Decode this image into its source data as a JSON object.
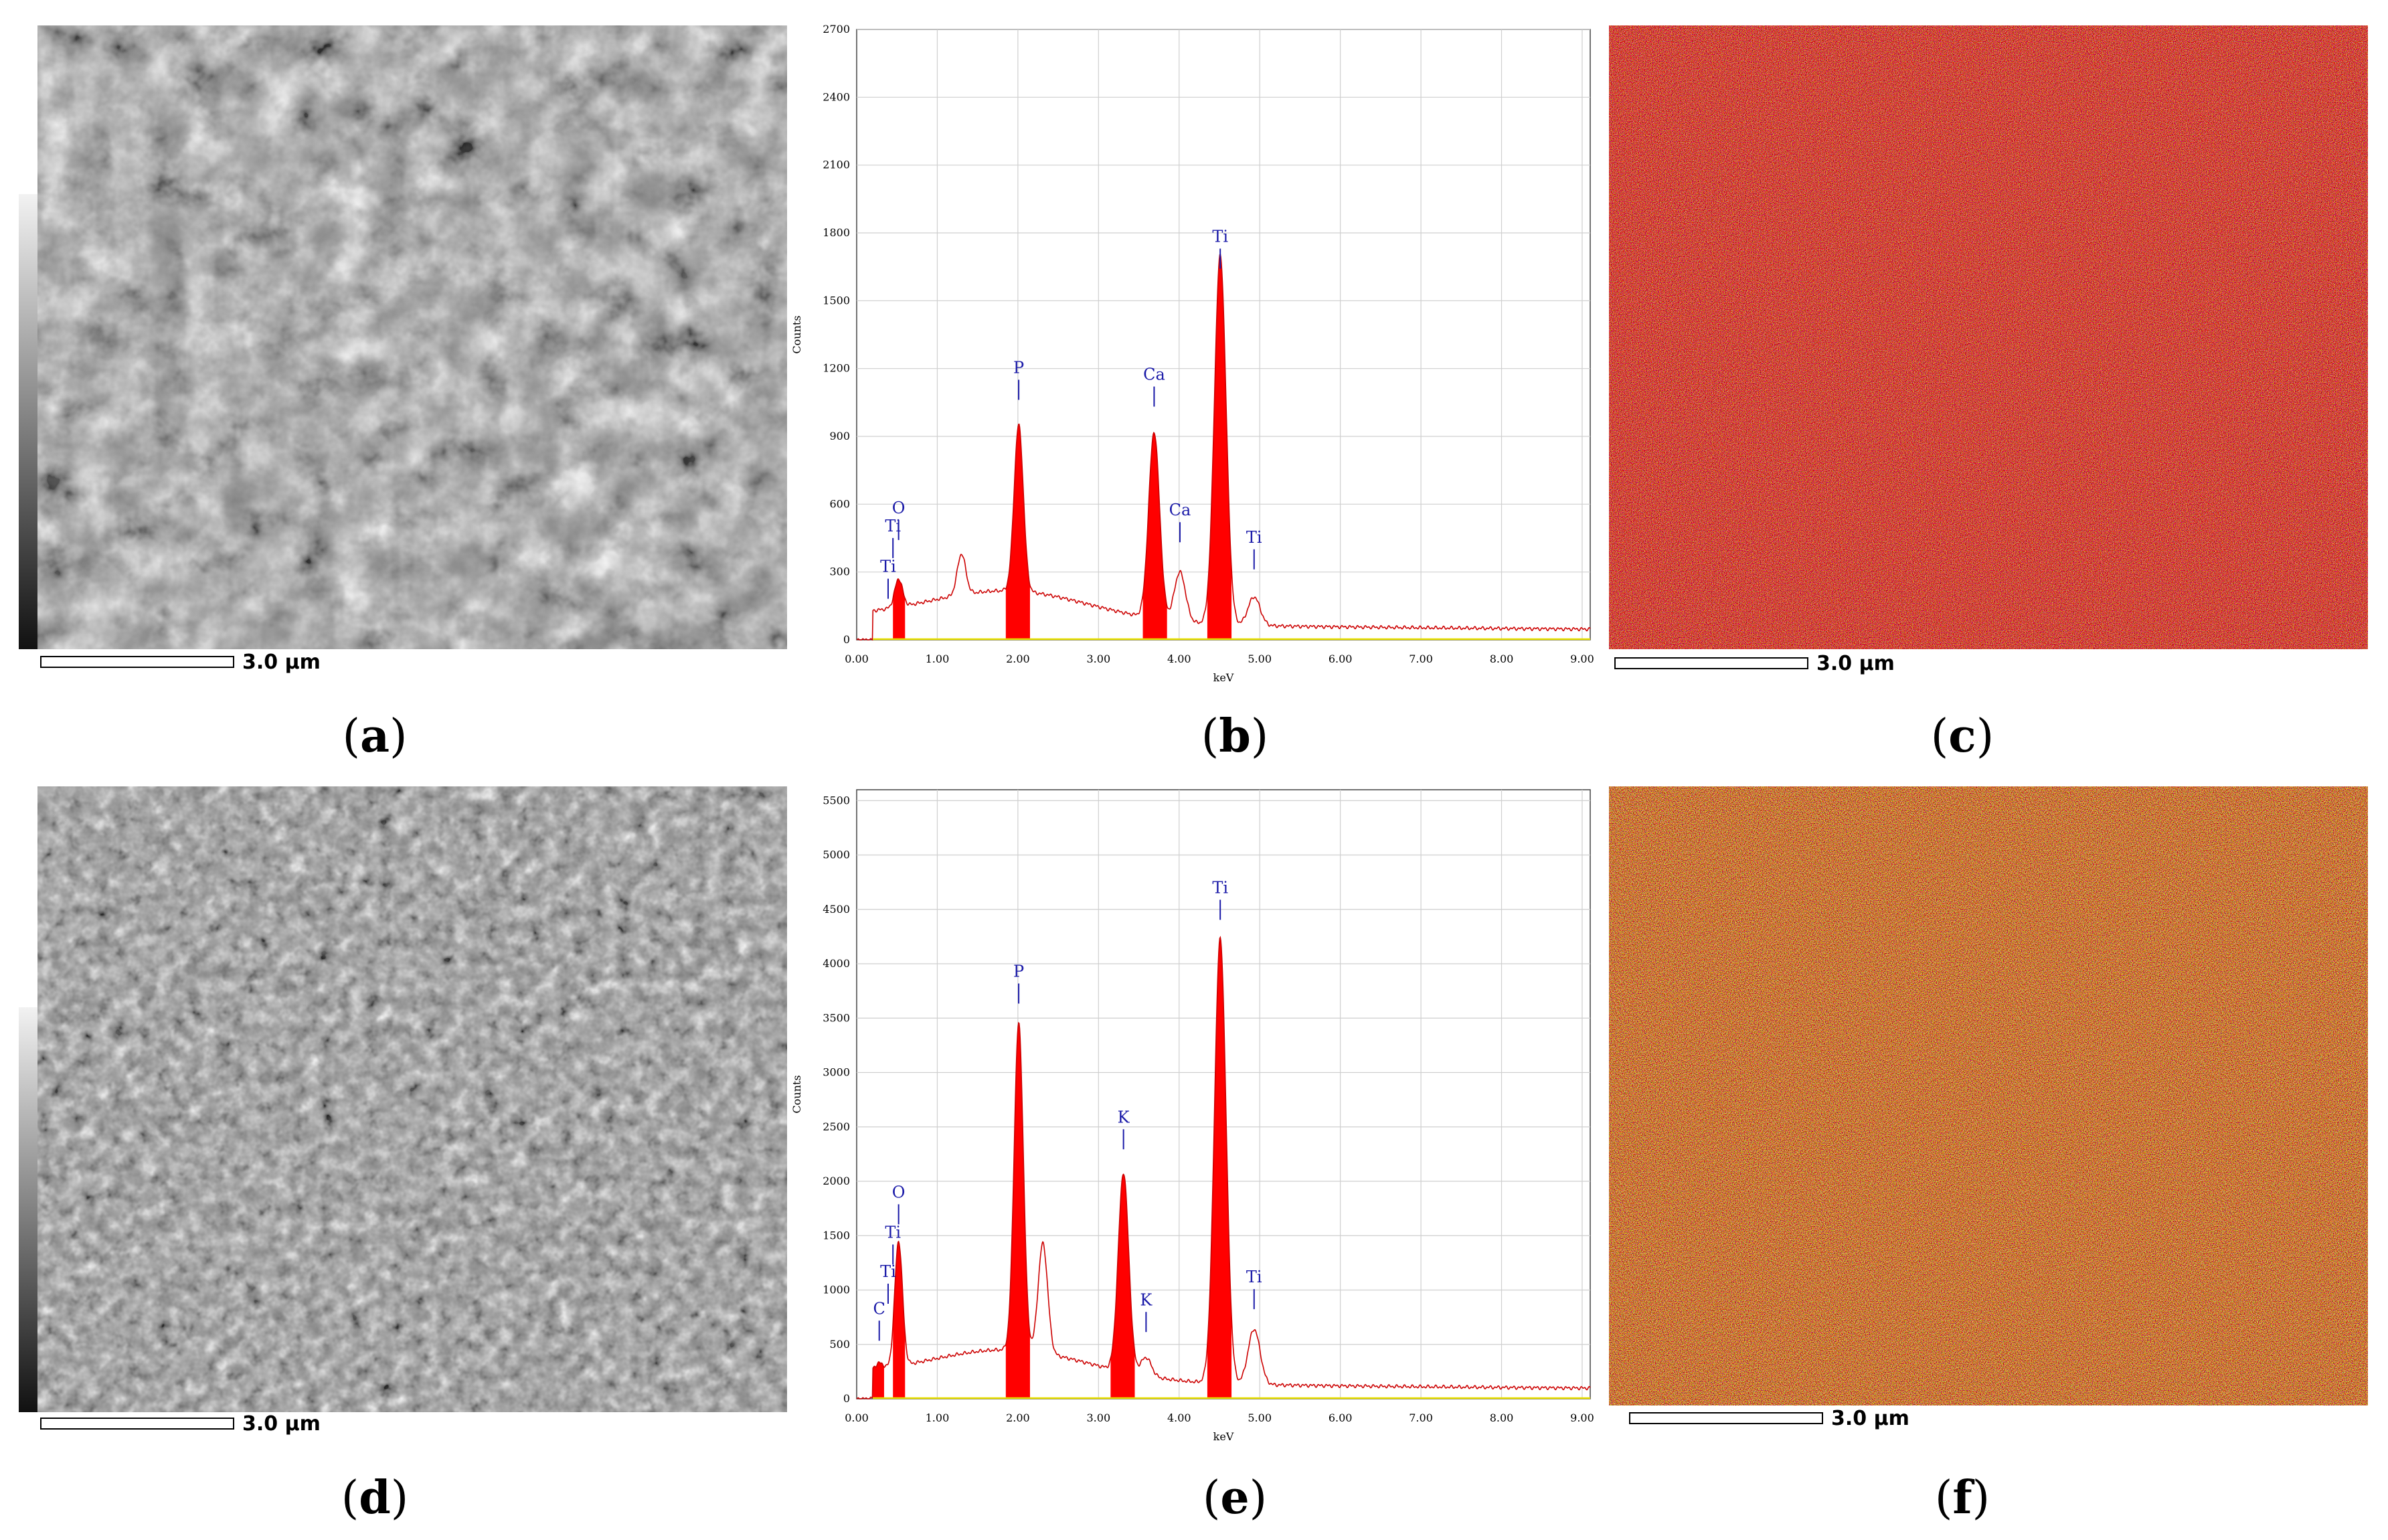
{
  "panels": {
    "a": {
      "label": "a",
      "scale_text": "3.0 µm"
    },
    "b": {
      "label": "b"
    },
    "c": {
      "label": "c",
      "scale_text": "3.0 µm"
    },
    "d": {
      "label": "d",
      "scale_text": "3.0 µm"
    },
    "e": {
      "label": "e"
    },
    "f": {
      "label": "f",
      "scale_text": "3.0 µm"
    }
  },
  "chart_data": [
    {
      "panel": "b",
      "type": "area",
      "xlabel": "keV",
      "ylabel": "Counts",
      "xlim": [
        0,
        9.1
      ],
      "ylim": [
        0,
        2700
      ],
      "xticks": [
        "0.00",
        "1.00",
        "2.00",
        "3.00",
        "4.00",
        "5.00",
        "6.00",
        "7.00",
        "8.00",
        "9.00"
      ],
      "yticks": [
        "0",
        "300",
        "600",
        "900",
        "1200",
        "1500",
        "1800",
        "2100",
        "2400",
        "2700"
      ],
      "grid": true,
      "colors": {
        "fill": "#ff0000",
        "line": "#cc0000",
        "label": "#1a1aa8",
        "baseline": "#e8e000"
      },
      "peaks": [
        {
          "x": 0.28,
          "y": 100
        },
        {
          "x": 0.39,
          "y": 120
        },
        {
          "x": 0.52,
          "y": 270
        },
        {
          "x": 1.3,
          "y": 380
        },
        {
          "x": 2.01,
          "y": 950
        },
        {
          "x": 3.69,
          "y": 920
        },
        {
          "x": 4.01,
          "y": 300
        },
        {
          "x": 4.51,
          "y": 1700
        },
        {
          "x": 4.93,
          "y": 190
        }
      ],
      "filled_regions": [
        [
          0.45,
          0.6
        ],
        [
          1.85,
          2.15
        ],
        [
          3.55,
          3.85
        ],
        [
          4.35,
          4.65
        ]
      ],
      "peak_labels": [
        {
          "text": "Ti",
          "x": 0.39,
          "y": 300
        },
        {
          "text": "Ti",
          "x": 0.45,
          "y": 480
        },
        {
          "text": "O",
          "x": 0.52,
          "y": 560
        },
        {
          "text": "P",
          "x": 2.01,
          "y": 1180
        },
        {
          "text": "Ca",
          "x": 3.69,
          "y": 1150
        },
        {
          "text": "Ca",
          "x": 4.01,
          "y": 550
        },
        {
          "text": "Ti",
          "x": 4.51,
          "y": 1760
        },
        {
          "text": "Ti",
          "x": 4.93,
          "y": 430
        }
      ]
    },
    {
      "panel": "e",
      "type": "area",
      "xlabel": "keV",
      "ylabel": "Counts",
      "xlim": [
        0,
        9.1
      ],
      "ylim": [
        0,
        5600
      ],
      "xticks": [
        "0.00",
        "1.00",
        "2.00",
        "3.00",
        "4.00",
        "5.00",
        "6.00",
        "7.00",
        "8.00",
        "9.00"
      ],
      "yticks": [
        "0",
        "500",
        "1000",
        "1500",
        "2000",
        "2500",
        "3000",
        "3500",
        "4000",
        "4500",
        "5000",
        "5500"
      ],
      "grid": true,
      "colors": {
        "fill": "#ff0000",
        "line": "#cc0000",
        "label": "#1a1aa8",
        "baseline": "#e8e000"
      },
      "peaks": [
        {
          "x": 0.28,
          "y": 330
        },
        {
          "x": 0.39,
          "y": 240
        },
        {
          "x": 0.52,
          "y": 1450
        },
        {
          "x": 2.01,
          "y": 3450
        },
        {
          "x": 2.31,
          "y": 1430
        },
        {
          "x": 3.31,
          "y": 2080
        },
        {
          "x": 3.59,
          "y": 380
        },
        {
          "x": 4.51,
          "y": 4230
        },
        {
          "x": 4.93,
          "y": 640
        }
      ],
      "filled_regions": [
        [
          0.2,
          0.34
        ],
        [
          0.45,
          0.6
        ],
        [
          1.85,
          2.15
        ],
        [
          3.15,
          3.45
        ],
        [
          4.35,
          4.65
        ]
      ],
      "peak_labels": [
        {
          "text": "C",
          "x": 0.28,
          "y": 780
        },
        {
          "text": "Ti",
          "x": 0.39,
          "y": 1120
        },
        {
          "text": "Ti",
          "x": 0.45,
          "y": 1480
        },
        {
          "text": "O",
          "x": 0.52,
          "y": 1850
        },
        {
          "text": "P",
          "x": 2.01,
          "y": 3880
        },
        {
          "text": "K",
          "x": 3.31,
          "y": 2540
        },
        {
          "text": "K",
          "x": 3.59,
          "y": 860
        },
        {
          "text": "Ti",
          "x": 4.51,
          "y": 4650
        },
        {
          "text": "Ti",
          "x": 4.93,
          "y": 1070
        }
      ]
    }
  ]
}
